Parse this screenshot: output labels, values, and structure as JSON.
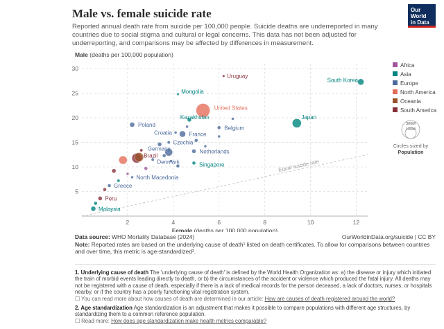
{
  "header": {
    "title": "Male vs. female suicide rate",
    "subtitle": "Reported annual death rate from suicide per 100,000 people. Suicide deaths are underreported in many countries due to social stigma and cultural or legal concerns. This data has not been adjusted for underreporting, and comparisons may be affected by differences in measurement.",
    "logo_line1": "Our World",
    "logo_line2": "in Data"
  },
  "chart_data": {
    "type": "scatter",
    "xlabel_bold": "Female",
    "xlabel_rest": " (deaths per 100,000 population)",
    "ylabel_bold": "Male",
    "ylabel_rest": " (deaths per 100,000 population)",
    "xlim": [
      0,
      12.5
    ],
    "ylim": [
      0,
      31
    ],
    "xticks": [
      2,
      4,
      6,
      8,
      10,
      12
    ],
    "yticks": [
      5,
      10,
      15,
      20,
      25,
      30
    ],
    "grid": true,
    "equal_rate_label": "Equal suicide rate",
    "legend_placement": "right",
    "legend": [
      {
        "name": "Africa",
        "color": "#a2559c"
      },
      {
        "name": "Asia",
        "color": "#00847e"
      },
      {
        "name": "Europe",
        "color": "#4c6a9c"
      },
      {
        "name": "North America",
        "color": "#e56e5a"
      },
      {
        "name": "Oceania",
        "color": "#9a5129"
      },
      {
        "name": "South America",
        "color": "#883039"
      }
    ],
    "size_legend": {
      "big": "300M",
      "small": "100M",
      "caption1": "Circles sized by",
      "caption2": "Population"
    },
    "points": [
      {
        "label": "Uruguay",
        "x": 6.2,
        "y": 28.5,
        "color": "#883039",
        "r": 1.8,
        "labeled": true,
        "lx": 3,
        "ly": 0
      },
      {
        "label": "South Korea",
        "x": 12.2,
        "y": 27.3,
        "color": "#00847e",
        "r": 4.5,
        "labeled": true,
        "lx": -4,
        "ly": -3,
        "anchor": "end"
      },
      {
        "label": "Mongolia",
        "x": 4.2,
        "y": 24.8,
        "color": "#00847e",
        "r": 1.8,
        "labeled": true,
        "lx": 3,
        "ly": -4
      },
      {
        "label": "United States",
        "x": 5.3,
        "y": 21.5,
        "color": "#e56e5a",
        "r": 10,
        "labeled": true,
        "lx": 6,
        "ly": -4
      },
      {
        "label": "Kazakhstan",
        "x": 4.7,
        "y": 19.6,
        "color": "#00847e",
        "r": 3,
        "labeled": true,
        "lx": -16,
        "ly": -4
      },
      {
        "label": "Japan",
        "x": 9.4,
        "y": 18.9,
        "color": "#00847e",
        "r": 6.5,
        "labeled": true,
        "lx": 0,
        "ly": -9
      },
      {
        "label": "Poland",
        "x": 2.2,
        "y": 18.6,
        "color": "#4c6a9c",
        "r": 3.5,
        "labeled": true,
        "lx": 5,
        "ly": 0
      },
      {
        "label": "Belgium",
        "x": 6.0,
        "y": 18.0,
        "color": "#4c6a9c",
        "r": 2.5,
        "labeled": true,
        "lx": 5,
        "ly": 0
      },
      {
        "label": "Croatia",
        "x": 4.1,
        "y": 17.0,
        "color": "#4c6a9c",
        "r": 2,
        "labeled": true,
        "lx": -33,
        "ly": 0
      },
      {
        "label": "France",
        "x": 4.4,
        "y": 16.7,
        "color": "#4c6a9c",
        "r": 4.5,
        "labeled": true,
        "lx": 5,
        "ly": 0
      },
      {
        "label": "Czechia",
        "x": 3.8,
        "y": 15.0,
        "color": "#4c6a9c",
        "r": 2.2,
        "labeled": true,
        "lx": 4,
        "ly": 0
      },
      {
        "label": "Germany",
        "x": 3.8,
        "y": 13.0,
        "color": "#4c6a9c",
        "r": 5.5,
        "labeled": true,
        "lx": -36,
        "ly": -5
      },
      {
        "label": "Netherlands",
        "x": 4.9,
        "y": 13.2,
        "color": "#4c6a9c",
        "r": 3,
        "labeled": true,
        "lx": 5,
        "ly": 0
      },
      {
        "label": "Brazil",
        "x": 2.4,
        "y": 11.8,
        "color": "#883039",
        "r": 7,
        "labeled": true,
        "lx": 3,
        "ly": -4
      },
      {
        "label": "Denmark",
        "x": 3.1,
        "y": 11.5,
        "color": "#4c6a9c",
        "r": 2.2,
        "labeled": true,
        "lx": 4,
        "ly": 3
      },
      {
        "label": "Singapore",
        "x": 4.9,
        "y": 10.8,
        "color": "#00847e",
        "r": 2.5,
        "labeled": true,
        "lx": 5,
        "ly": 2
      },
      {
        "label": "North Macedonia",
        "x": 2.2,
        "y": 7.9,
        "color": "#4c6a9c",
        "r": 2,
        "labeled": true,
        "lx": 4,
        "ly": 0
      },
      {
        "label": "Greece",
        "x": 1.2,
        "y": 6.2,
        "color": "#4c6a9c",
        "r": 2.5,
        "labeled": true,
        "lx": 4,
        "ly": 0
      },
      {
        "label": "Peru",
        "x": 0.8,
        "y": 3.6,
        "color": "#883039",
        "r": 3,
        "labeled": true,
        "lx": 4,
        "ly": 0
      },
      {
        "label": "Malaysia",
        "x": 0.5,
        "y": 1.5,
        "color": "#00847e",
        "r": 3.5,
        "labeled": true,
        "lx": 4,
        "ly": 0
      },
      {
        "label": "",
        "x": 2.5,
        "y": 12.0,
        "color": "#9a5129",
        "r": 6.5
      },
      {
        "label": "",
        "x": 1.8,
        "y": 11.4,
        "color": "#e56e5a",
        "r": 6
      },
      {
        "label": "",
        "x": 3.4,
        "y": 14.6,
        "color": "#4c6a9c",
        "r": 3
      },
      {
        "label": "",
        "x": 5.0,
        "y": 15.4,
        "color": "#4c6a9c",
        "r": 2.5
      },
      {
        "label": "",
        "x": 6.0,
        "y": 16.2,
        "color": "#4c6a9c",
        "r": 2
      },
      {
        "label": "",
        "x": 3.6,
        "y": 12.3,
        "color": "#4c6a9c",
        "r": 2.5
      },
      {
        "label": "",
        "x": 2.8,
        "y": 9.7,
        "color": "#a2559c",
        "r": 2.5
      },
      {
        "label": "",
        "x": 1.4,
        "y": 9.2,
        "color": "#883039",
        "r": 3
      },
      {
        "label": "",
        "x": 4.2,
        "y": 10.2,
        "color": "#4c6a9c",
        "r": 2.5
      },
      {
        "label": "",
        "x": 3.9,
        "y": 11.2,
        "color": "#4c6a9c",
        "r": 2
      },
      {
        "label": "",
        "x": 1.0,
        "y": 5.4,
        "color": "#883039",
        "r": 2.5
      },
      {
        "label": "",
        "x": 1.6,
        "y": 7.2,
        "color": "#00847e",
        "r": 2.2
      },
      {
        "label": "",
        "x": 2.0,
        "y": 8.6,
        "color": "#a2559c",
        "r": 2
      },
      {
        "label": "",
        "x": 0.6,
        "y": 2.6,
        "color": "#00847e",
        "r": 2.5
      },
      {
        "label": "",
        "x": 5.4,
        "y": 14.2,
        "color": "#4c6a9c",
        "r": 2
      },
      {
        "label": "",
        "x": 2.6,
        "y": 13.4,
        "color": "#883039",
        "r": 2.2
      },
      {
        "label": "",
        "x": 4.6,
        "y": 18.2,
        "color": "#4c6a9c",
        "r": 2
      },
      {
        "label": "",
        "x": 6.6,
        "y": 19.8,
        "color": "#4c6a9c",
        "r": 2
      }
    ]
  },
  "footer": {
    "source_label": "Data source:",
    "source_text": " WHO Mortality Database (2024)",
    "url": "OurWorldinData.org/suicide | CC BY",
    "note_label": "Note:",
    "note_text": " Reported rates are based on the underlying cause of death¹ listed on death certificates. To allow for comparisons between countries and over time, this metric is age-standardized².",
    "fn1_title": "1. Underlying cause of death",
    "fn1_text": " The 'underlying cause of death' is defined by the World Health Organization as: a) the disease or injury which initiated the train of morbid events leading directly to death, or b) the circumstances of the accident or violence which produced the fatal injury. All deaths may not be registered with a cause of death, especially if there is a lack of medical records for the person deceased, a lack of doctors, nurses, or hospitals nearby, or if the country has a poorly functioning vital registration system.",
    "fn1_more": "You can read more about how causes of death are determined in our article: ",
    "fn1_link": "How are causes of death registered around the world?",
    "fn2_title": "2. Age standardization",
    "fn2_text": " Age standardization is an adjustment that makes it possible to compare populations with different age structures, by standardizing them to a common reference population.",
    "fn2_more": "Read more: ",
    "fn2_link": "How does age standardization make health metrics comparable?"
  }
}
